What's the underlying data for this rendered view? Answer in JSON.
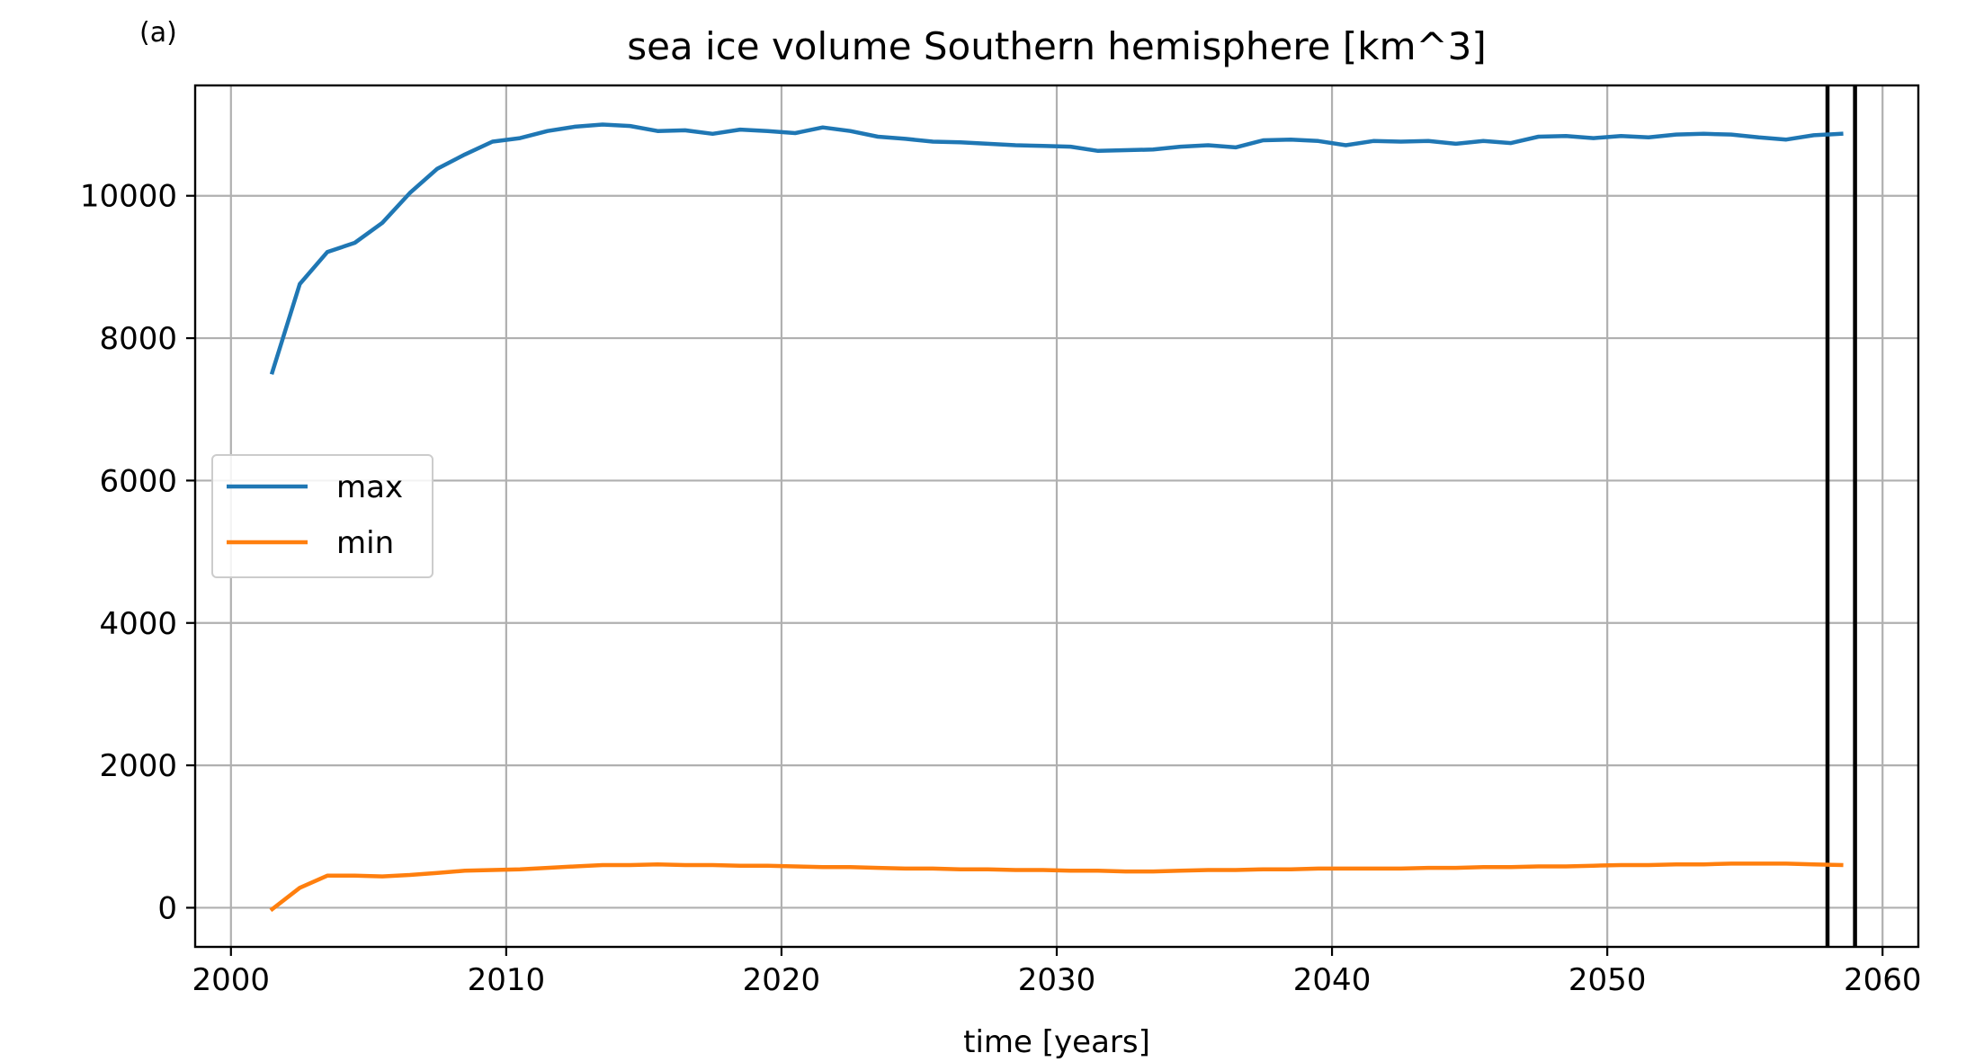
{
  "panel_label": "(a)",
  "chart_data": {
    "type": "line",
    "title": "sea ice volume Southern hemisphere [km^3]",
    "xlabel": "time [years]",
    "ylabel": "",
    "xlim": [
      1998.7,
      2061.3
    ],
    "ylim": [
      -550,
      11550
    ],
    "xticks": [
      2000,
      2010,
      2020,
      2030,
      2040,
      2050,
      2060
    ],
    "xtick_labels": [
      "2000",
      "2010",
      "2020",
      "2030",
      "2040",
      "2050",
      "2060"
    ],
    "yticks": [
      0,
      2000,
      4000,
      6000,
      8000,
      10000
    ],
    "ytick_labels": [
      "0",
      "2000",
      "4000",
      "6000",
      "8000",
      "10000"
    ],
    "grid": true,
    "legend_position": "center-left",
    "vertical_lines": [
      2058.0,
      2059.0
    ],
    "vertical_line_color": "#000000",
    "x": [
      2001.5,
      2002.5,
      2003.5,
      2004.5,
      2005.5,
      2006.5,
      2007.5,
      2008.5,
      2009.5,
      2010.5,
      2011.5,
      2012.5,
      2013.5,
      2014.5,
      2015.5,
      2016.5,
      2017.5,
      2018.5,
      2019.5,
      2020.5,
      2021.5,
      2022.5,
      2023.5,
      2024.5,
      2025.5,
      2026.5,
      2027.5,
      2028.5,
      2029.5,
      2030.5,
      2031.5,
      2032.5,
      2033.5,
      2034.5,
      2035.5,
      2036.5,
      2037.5,
      2038.5,
      2039.5,
      2040.5,
      2041.5,
      2042.5,
      2043.5,
      2044.5,
      2045.5,
      2046.5,
      2047.5,
      2048.5,
      2049.5,
      2050.5,
      2051.5,
      2052.5,
      2053.5,
      2054.5,
      2055.5,
      2056.5,
      2057.5,
      2058.5
    ],
    "series": [
      {
        "name": "max",
        "color": "#1f77b4",
        "values": [
          7520,
          8760,
          9210,
          9340,
          9620,
          10040,
          10380,
          10580,
          10760,
          10810,
          10910,
          10970,
          11000,
          10980,
          10910,
          10920,
          10870,
          10930,
          10910,
          10880,
          10960,
          10910,
          10830,
          10800,
          10760,
          10750,
          10730,
          10710,
          10700,
          10690,
          10630,
          10640,
          10650,
          10690,
          10710,
          10680,
          10780,
          10790,
          10770,
          10710,
          10770,
          10760,
          10770,
          10730,
          10770,
          10740,
          10830,
          10840,
          10810,
          10840,
          10820,
          10860,
          10870,
          10860,
          10820,
          10790,
          10850,
          10870
        ]
      },
      {
        "name": "min",
        "color": "#ff7f0e",
        "values": [
          -20,
          280,
          450,
          450,
          440,
          460,
          490,
          520,
          530,
          540,
          560,
          580,
          600,
          600,
          610,
          600,
          600,
          590,
          590,
          580,
          570,
          570,
          560,
          550,
          550,
          540,
          540,
          530,
          530,
          520,
          520,
          510,
          510,
          520,
          530,
          530,
          540,
          540,
          550,
          550,
          550,
          550,
          560,
          560,
          570,
          570,
          580,
          580,
          590,
          600,
          600,
          610,
          610,
          620,
          620,
          620,
          610,
          600
        ]
      }
    ]
  }
}
